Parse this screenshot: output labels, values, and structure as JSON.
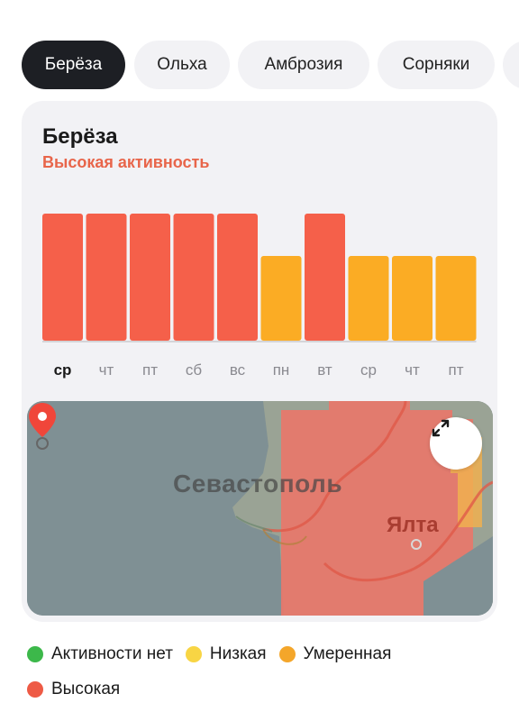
{
  "tabs": [
    {
      "label": "Берёза",
      "active": true
    },
    {
      "label": "Ольха",
      "active": false
    },
    {
      "label": "Амброзия",
      "active": false
    },
    {
      "label": "Сорняки",
      "active": false
    }
  ],
  "card": {
    "title": "Берёза",
    "status": "Высокая активность"
  },
  "chart_data": {
    "type": "bar",
    "categories": [
      "ср",
      "чт",
      "пт",
      "сб",
      "вс",
      "пн",
      "вт",
      "ср",
      "чт",
      "пт"
    ],
    "values": [
      3,
      3,
      3,
      3,
      3,
      2,
      3,
      2,
      2,
      2
    ],
    "levels": [
      "high",
      "high",
      "high",
      "high",
      "high",
      "moderate",
      "high",
      "moderate",
      "moderate",
      "moderate"
    ],
    "current_index": 0,
    "ylim": [
      0,
      3
    ],
    "colors": {
      "high": "#f5604a",
      "moderate": "#fbac24"
    },
    "title": "",
    "xlabel": "",
    "ylabel": ""
  },
  "map": {
    "city_main": "Севастополь",
    "city_secondary": "Ялта",
    "expand_icon": "expand-icon",
    "pin_icon": "location-pin-icon"
  },
  "legend": {
    "items": [
      {
        "label": "Активности нет",
        "color": "#3cb84a"
      },
      {
        "label": "Низкая",
        "color": "#f8d544"
      },
      {
        "label": "Умеренная",
        "color": "#f4a62a"
      },
      {
        "label": "Высокая",
        "color": "#ee5a45"
      }
    ]
  }
}
